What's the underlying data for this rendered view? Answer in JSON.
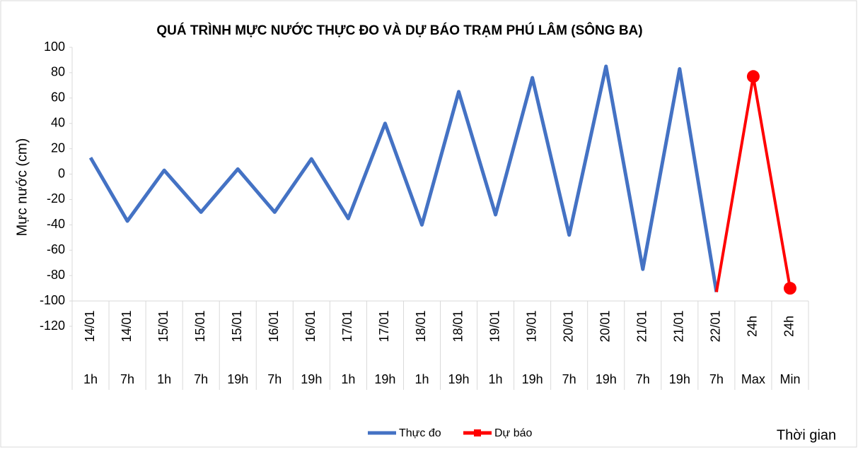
{
  "chart_data": {
    "type": "line",
    "title": "QUÁ TRÌNH MỰC NƯỚC THỰC ĐO VÀ DỰ BÁO TRẠM PHÚ LÂM (SÔNG BA)",
    "y_label": "Mực nước (cm)",
    "x_label": "Thời gian",
    "categories": [
      [
        "14/01",
        "1h"
      ],
      [
        "14/01",
        "7h"
      ],
      [
        "15/01",
        "1h"
      ],
      [
        "15/01",
        "7h"
      ],
      [
        "15/01",
        "19h"
      ],
      [
        "16/01",
        "7h"
      ],
      [
        "16/01",
        "19h"
      ],
      [
        "17/01",
        "1h"
      ],
      [
        "17/01",
        "19h"
      ],
      [
        "18/01",
        "1h"
      ],
      [
        "18/01",
        "19h"
      ],
      [
        "19/01",
        "1h"
      ],
      [
        "19/01",
        "19h"
      ],
      [
        "20/01",
        "7h"
      ],
      [
        "20/01",
        "19h"
      ],
      [
        "21/01",
        "7h"
      ],
      [
        "21/01",
        "19h"
      ],
      [
        "22/01",
        "7h"
      ],
      [
        "24h",
        "Max"
      ],
      [
        "24h",
        "Min"
      ]
    ],
    "series": [
      {
        "name": "Thực đo",
        "color": "#4472c4",
        "values": [
          13,
          -37,
          3,
          -30,
          4,
          -30,
          12,
          -35,
          40,
          -40,
          65,
          -32,
          76,
          -48,
          85,
          -75,
          83,
          -93,
          null,
          null
        ]
      },
      {
        "name": "Dự báo",
        "color": "#ff0000",
        "values": [
          null,
          null,
          null,
          null,
          null,
          null,
          null,
          null,
          null,
          null,
          null,
          null,
          null,
          null,
          null,
          null,
          null,
          -93,
          77,
          -90
        ]
      }
    ],
    "ylim": [
      -120,
      100
    ],
    "yticks": [
      -120,
      -100,
      -80,
      -60,
      -40,
      -20,
      0,
      20,
      40,
      60,
      80,
      100
    ],
    "legend": "bottom"
  }
}
